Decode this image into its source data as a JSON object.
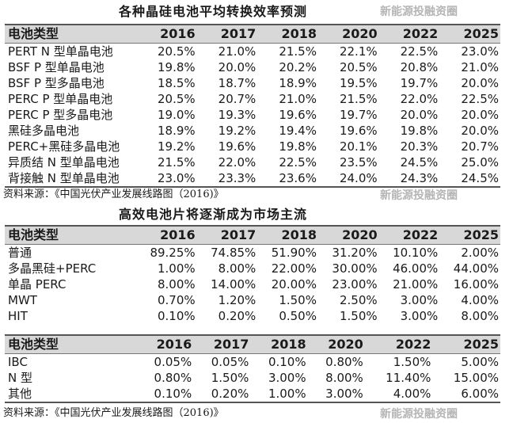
{
  "table1": {
    "title": "各种晶硅电池平均转换效率预测",
    "headers": [
      "电池类型",
      "2016",
      "2017",
      "2018",
      "2020",
      "2022",
      "2025"
    ],
    "rows": [
      [
        "PERT N 型单晶电池",
        "20.5%",
        "21.0%",
        "21.5%",
        "22.1%",
        "22.5%",
        "23.0%"
      ],
      [
        "BSF P 型单晶电池",
        "19.8%",
        "20.0%",
        "20.2%",
        "20.5%",
        "20.8%",
        "21.0%"
      ],
      [
        "BSF P 型多晶电池",
        "18.5%",
        "18.7%",
        "18.9%",
        "19.5%",
        "19.7%",
        "20.0%"
      ],
      [
        "PERC P 型单晶电池",
        "20.5%",
        "20.7%",
        "21.0%",
        "21.5%",
        "22.0%",
        "22.5%"
      ],
      [
        "PERC P 型多晶电池",
        "19.0%",
        "19.3%",
        "19.6%",
        "19.7%",
        "20.0%",
        "20.0%"
      ],
      [
        "黑硅多晶电池",
        "18.9%",
        "19.2%",
        "19.4%",
        "19.6%",
        "19.8%",
        "20.0%"
      ],
      [
        "PERC+黑硅多晶电池",
        "19.2%",
        "19.6%",
        "19.8%",
        "20.1%",
        "20.3%",
        "20.7%"
      ],
      [
        "异质结 N 型单晶电池",
        "21.5%",
        "22.0%",
        "22.5%",
        "23.5%",
        "24.5%",
        "25.0%"
      ],
      [
        "背接触 N 型单晶电池",
        "23.0%",
        "23.3%",
        "23.6%",
        "24.0%",
        "24.3%",
        "24.5%"
      ]
    ],
    "source": "资料来源：《中国光伏产业发展线路图（2016)》"
  },
  "table2": {
    "title": "高效电池片将逐渐成为市场主流",
    "headers": [
      "电池类型",
      "2016",
      "2017",
      "2018",
      "2020",
      "2022",
      "2025"
    ],
    "rows": [
      [
        "普通",
        "89.25%",
        "74.85%",
        "51.90%",
        "31.20%",
        "10.10%",
        "2.00%"
      ],
      [
        "多晶黑硅+PERC",
        "1.00%",
        "8.00%",
        "22.00%",
        "30.00%",
        "46.00%",
        "44.00%"
      ],
      [
        "单晶 PERC",
        "8.00%",
        "14.00%",
        "20.00%",
        "23.00%",
        "21.00%",
        "16.00%"
      ],
      [
        "MWT",
        "0.70%",
        "1.20%",
        "1.50%",
        "2.50%",
        "3.00%",
        "4.00%"
      ],
      [
        "HIT",
        "0.10%",
        "0.20%",
        "0.50%",
        "1.50%",
        "3.00%",
        "8.00%"
      ]
    ]
  },
  "table3": {
    "headers": [
      "电池类型",
      "2016",
      "2017",
      "2018",
      "2020",
      "2022",
      "2025"
    ],
    "rows": [
      [
        "IBC",
        "0.05%",
        "0.05%",
        "0.10%",
        "0.80%",
        "1.50%",
        "5.00%"
      ],
      [
        "N 型",
        "0.80%",
        "1.50%",
        "3.00%",
        "8.00%",
        "11.40%",
        "15.00%"
      ],
      [
        "其他",
        "0.10%",
        "0.20%",
        "1.00%",
        "3.00%",
        "4.00%",
        "6.00%"
      ]
    ],
    "source": "资料来源：《中国光伏产业发展线路图（2016)》"
  },
  "watermark": "新能源投融资圈"
}
